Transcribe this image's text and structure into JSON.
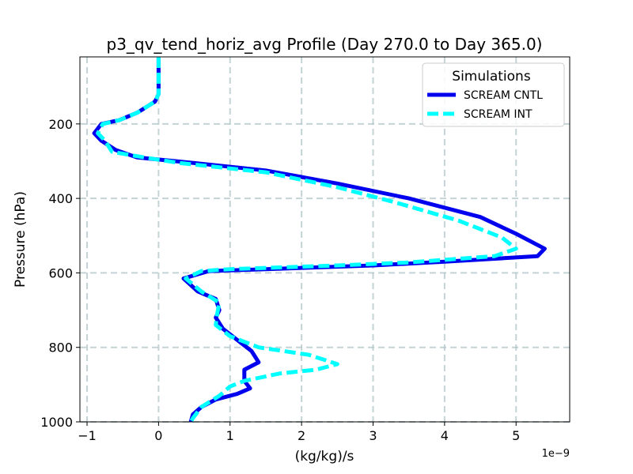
{
  "chart_data": {
    "type": "line",
    "title": "p3_qv_tend_horiz_avg Profile (Day 270.0 to Day 365.0)",
    "xlabel": "(kg/kg)/s",
    "ylabel": "Pressure (hPa)",
    "x_offset_label": "1e−9",
    "xlim": [
      -1.1,
      5.75
    ],
    "ylim": [
      1000,
      20
    ],
    "y_inverted": true,
    "x_ticks": [
      -1,
      0,
      1,
      2,
      3,
      4,
      5
    ],
    "x_tick_labels": [
      "−1",
      "0",
      "1",
      "2",
      "3",
      "4",
      "5"
    ],
    "y_ticks": [
      200,
      400,
      600,
      800,
      1000
    ],
    "y_tick_labels": [
      "200",
      "400",
      "600",
      "800",
      "1000"
    ],
    "grid": true,
    "legend": {
      "title": "Simulations",
      "placement": "top-right"
    },
    "series": [
      {
        "name": "SCREAM CNTL",
        "color": "#0000ee",
        "style": "solid",
        "points": [
          [
            0.0,
            20
          ],
          [
            0.0,
            80
          ],
          [
            0.0,
            120
          ],
          [
            -0.05,
            140
          ],
          [
            -0.3,
            170
          ],
          [
            -0.55,
            190
          ],
          [
            -0.8,
            200
          ],
          [
            -0.9,
            225
          ],
          [
            -0.8,
            245
          ],
          [
            -0.6,
            270
          ],
          [
            -0.3,
            290
          ],
          [
            0.5,
            305
          ],
          [
            1.5,
            325
          ],
          [
            2.5,
            360
          ],
          [
            3.5,
            400
          ],
          [
            4.5,
            450
          ],
          [
            5.0,
            495
          ],
          [
            5.4,
            535
          ],
          [
            5.3,
            555
          ],
          [
            4.0,
            570
          ],
          [
            3.0,
            580
          ],
          [
            1.5,
            590
          ],
          [
            0.7,
            595
          ],
          [
            0.35,
            615
          ],
          [
            0.55,
            650
          ],
          [
            0.8,
            670
          ],
          [
            0.85,
            700
          ],
          [
            0.8,
            720
          ],
          [
            0.9,
            750
          ],
          [
            1.1,
            780
          ],
          [
            1.3,
            810
          ],
          [
            1.4,
            840
          ],
          [
            1.2,
            860
          ],
          [
            1.2,
            890
          ],
          [
            1.28,
            910
          ],
          [
            1.1,
            925
          ],
          [
            0.8,
            940
          ],
          [
            0.6,
            960
          ],
          [
            0.48,
            980
          ],
          [
            0.45,
            1000
          ]
        ]
      },
      {
        "name": "SCREAM INT",
        "color": "#00ffff",
        "style": "dashed",
        "points": [
          [
            0.0,
            20
          ],
          [
            0.0,
            80
          ],
          [
            0.0,
            120
          ],
          [
            -0.05,
            140
          ],
          [
            -0.3,
            170
          ],
          [
            -0.55,
            190
          ],
          [
            -0.78,
            200
          ],
          [
            -0.85,
            225
          ],
          [
            -0.75,
            245
          ],
          [
            -0.65,
            275
          ],
          [
            -0.2,
            290
          ],
          [
            0.3,
            305
          ],
          [
            1.5,
            330
          ],
          [
            2.5,
            370
          ],
          [
            3.3,
            410
          ],
          [
            4.2,
            460
          ],
          [
            4.8,
            505
          ],
          [
            5.0,
            535
          ],
          [
            4.7,
            555
          ],
          [
            3.5,
            572
          ],
          [
            2.5,
            580
          ],
          [
            1.0,
            590
          ],
          [
            0.6,
            595
          ],
          [
            0.38,
            615
          ],
          [
            0.6,
            650
          ],
          [
            0.85,
            680
          ],
          [
            0.82,
            710
          ],
          [
            0.8,
            740
          ],
          [
            1.0,
            770
          ],
          [
            1.4,
            800
          ],
          [
            2.1,
            820
          ],
          [
            2.5,
            845
          ],
          [
            2.2,
            860
          ],
          [
            1.7,
            870
          ],
          [
            1.2,
            890
          ],
          [
            1.0,
            905
          ],
          [
            0.85,
            930
          ],
          [
            0.6,
            960
          ],
          [
            0.48,
            990
          ],
          [
            0.45,
            1000
          ]
        ]
      }
    ]
  }
}
